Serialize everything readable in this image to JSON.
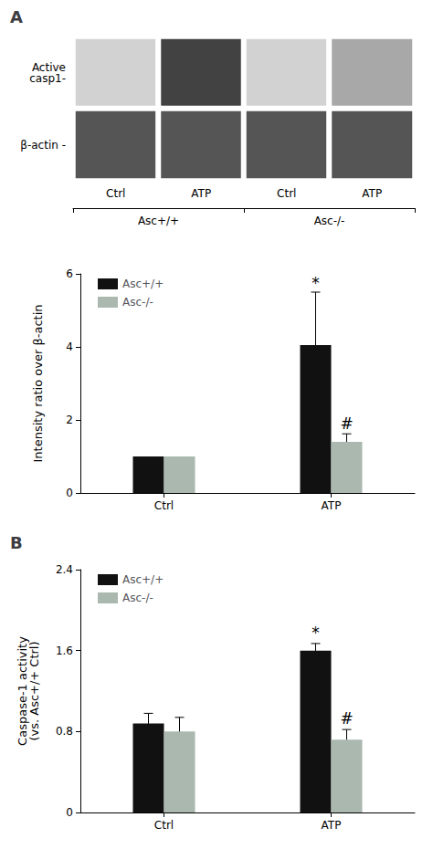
{
  "chart_data": [
    {
      "type": "heatmap",
      "title": "A",
      "categories": [
        "Ctrl",
        "ATP",
        "Ctrl",
        "ATP"
      ],
      "rows": [
        "Active\ncasp1-",
        "β-actin -"
      ],
      "groups": [
        "Asc+/+",
        "Asc-/-"
      ],
      "values": [
        [
          0,
          190,
          0,
          55
        ],
        [
          165,
          165,
          165,
          165
        ]
      ]
    },
    {
      "type": "bar",
      "categories": [
        "Ctrl",
        "ATP"
      ],
      "ylabel": "Intensity ratio over β-actin",
      "series": [
        {
          "name": "Asc+/+",
          "color": "#111111",
          "values": [
            1.0,
            4.05
          ],
          "errors": [
            0.0,
            1.45
          ]
        },
        {
          "name": "Asc-/-",
          "color": "#aab8b0",
          "values": [
            1.0,
            1.4
          ],
          "errors": [
            0.0,
            0.22
          ]
        }
      ],
      "ylim": [
        0,
        6
      ],
      "yticks": [
        0,
        2,
        4,
        6
      ],
      "grid": false,
      "legend": "upper left",
      "annotations": [
        {
          "text": "*",
          "series": "Asc+/+",
          "category": "ATP",
          "y": 5.55
        },
        {
          "text": "#",
          "series": "Asc-/-",
          "category": "ATP",
          "y": 1.68
        }
      ]
    },
    {
      "type": "bar",
      "title": "B",
      "categories": [
        "Ctrl",
        "ATP"
      ],
      "ylabel": "Caspase-1 activity\n(vs. Asc+/+ Ctrl)",
      "series": [
        {
          "name": "Asc+/+",
          "color": "#111111",
          "values": [
            0.88,
            1.6
          ],
          "errors": [
            0.1,
            0.07
          ]
        },
        {
          "name": "Asc-/-",
          "color": "#aab8b0",
          "values": [
            0.8,
            0.72
          ],
          "errors": [
            0.14,
            0.1
          ]
        }
      ],
      "ylim": [
        0,
        2.4
      ],
      "yticks": [
        0,
        0.8,
        1.6,
        2.4
      ],
      "grid": false,
      "legend": "upper left",
      "annotations": [
        {
          "text": "*",
          "series": "Asc+/+",
          "category": "ATP",
          "y": 1.7
        },
        {
          "text": "#",
          "series": "Asc-/-",
          "category": "ATP",
          "y": 0.85
        }
      ]
    }
  ]
}
